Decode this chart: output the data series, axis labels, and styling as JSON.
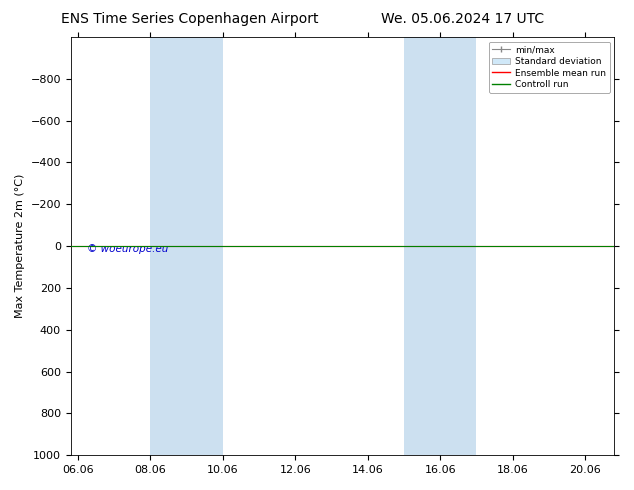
{
  "title_left": "ENS Time Series Copenhagen Airport",
  "title_right": "We. 05.06.2024 17 UTC",
  "ylabel": "Max Temperature 2m (°C)",
  "ylim_bottom": 1000,
  "ylim_top": -1000,
  "yticks": [
    -800,
    -600,
    -400,
    -200,
    0,
    200,
    400,
    600,
    800,
    1000
  ],
  "xtick_labels": [
    "06.06",
    "08.06",
    "10.06",
    "12.06",
    "14.06",
    "16.06",
    "18.06",
    "20.06"
  ],
  "xtick_positions": [
    0,
    2,
    4,
    6,
    8,
    10,
    12,
    14
  ],
  "xlim": [
    -0.2,
    14.8
  ],
  "shaded_bands": [
    {
      "x_start": 2,
      "x_end": 4,
      "color": "#cce0f0"
    },
    {
      "x_start": 9,
      "x_end": 11,
      "color": "#cce0f0"
    }
  ],
  "green_line_y": 0,
  "red_line_y": 0,
  "green_line_color": "#008000",
  "red_line_color": "#ff0000",
  "copyright_text": "© woeurope.eu",
  "copyright_color": "#0000cc",
  "legend_items": [
    "min/max",
    "Standard deviation",
    "Ensemble mean run",
    "Controll run"
  ],
  "background_color": "#ffffff",
  "plot_bg_color": "#ffffff",
  "title_fontsize": 10,
  "axis_label_fontsize": 8,
  "tick_fontsize": 8
}
